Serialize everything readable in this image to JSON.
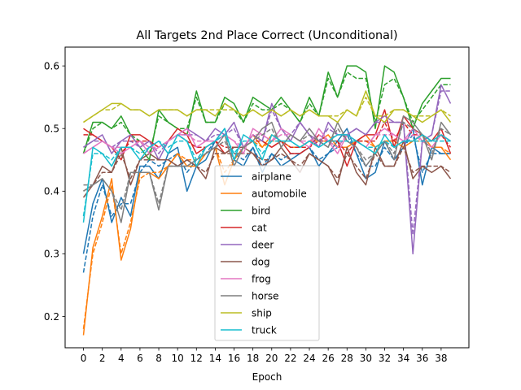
{
  "chart_data": {
    "type": "line",
    "title": "All Targets 2nd Place Correct (Unconditional)",
    "xlabel": "Epoch",
    "ylabel": "",
    "xlim": [
      -1.95,
      40.95
    ],
    "ylim": [
      0.15,
      0.63
    ],
    "xticks": [
      0,
      2,
      4,
      6,
      8,
      10,
      12,
      14,
      16,
      18,
      20,
      22,
      24,
      26,
      28,
      30,
      32,
      34,
      36,
      38
    ],
    "yticks": [
      0.2,
      0.3,
      0.4,
      0.5,
      0.6
    ],
    "legend_position": "lower-center",
    "line_styles": [
      "solid",
      "dashed"
    ],
    "x": [
      0,
      1,
      2,
      3,
      4,
      5,
      6,
      7,
      8,
      9,
      10,
      11,
      12,
      13,
      14,
      15,
      16,
      17,
      18,
      19,
      20,
      21,
      22,
      23,
      24,
      25,
      26,
      27,
      28,
      29,
      30,
      31,
      32,
      33,
      34,
      35,
      36,
      37,
      38,
      39
    ],
    "series": [
      {
        "name": "airplane",
        "color": "#1f77b4",
        "solid": [
          0.3,
          0.38,
          0.42,
          0.35,
          0.39,
          0.36,
          0.44,
          0.44,
          0.42,
          0.46,
          0.47,
          0.4,
          0.44,
          0.45,
          0.48,
          0.5,
          0.45,
          0.44,
          0.47,
          0.43,
          0.46,
          0.44,
          0.45,
          0.46,
          0.47,
          0.44,
          0.46,
          0.48,
          0.5,
          0.46,
          0.42,
          0.43,
          0.48,
          0.45,
          0.47,
          0.5,
          0.41,
          0.47,
          0.46,
          0.46
        ],
        "dashed": [
          0.27,
          0.36,
          0.41,
          0.36,
          0.38,
          0.38,
          0.43,
          0.45,
          0.44,
          0.45,
          0.46,
          0.43,
          0.45,
          0.46,
          0.48,
          0.49,
          0.46,
          0.45,
          0.47,
          0.44,
          0.46,
          0.45,
          0.46,
          0.46,
          0.47,
          0.45,
          0.46,
          0.47,
          0.49,
          0.46,
          0.44,
          0.44,
          0.47,
          0.45,
          0.47,
          0.49,
          0.43,
          0.46,
          0.46,
          0.46
        ]
      },
      {
        "name": "automobile",
        "color": "#ff7f0e",
        "solid": [
          0.17,
          0.31,
          0.36,
          0.42,
          0.29,
          0.34,
          0.43,
          0.43,
          0.42,
          0.44,
          0.46,
          0.44,
          0.44,
          0.46,
          0.47,
          0.41,
          0.45,
          0.47,
          0.49,
          0.47,
          0.49,
          0.48,
          0.47,
          0.47,
          0.48,
          0.48,
          0.49,
          0.47,
          0.47,
          0.48,
          0.49,
          0.47,
          0.48,
          0.48,
          0.47,
          0.48,
          0.49,
          0.47,
          0.47,
          0.45
        ],
        "dashed": [
          0.18,
          0.3,
          0.35,
          0.41,
          0.3,
          0.35,
          0.42,
          0.43,
          0.43,
          0.44,
          0.46,
          0.45,
          0.45,
          0.46,
          0.47,
          0.43,
          0.45,
          0.47,
          0.48,
          0.47,
          0.48,
          0.48,
          0.47,
          0.47,
          0.48,
          0.48,
          0.48,
          0.47,
          0.47,
          0.48,
          0.48,
          0.47,
          0.48,
          0.48,
          0.47,
          0.48,
          0.48,
          0.47,
          0.47,
          0.46
        ]
      },
      {
        "name": "bird",
        "color": "#2ca02c",
        "solid": [
          0.46,
          0.51,
          0.51,
          0.5,
          0.52,
          0.49,
          0.47,
          0.45,
          0.53,
          0.51,
          0.5,
          0.49,
          0.56,
          0.51,
          0.51,
          0.55,
          0.54,
          0.51,
          0.55,
          0.54,
          0.53,
          0.55,
          0.53,
          0.51,
          0.55,
          0.52,
          0.59,
          0.55,
          0.6,
          0.6,
          0.59,
          0.5,
          0.6,
          0.59,
          0.55,
          0.5,
          0.54,
          0.56,
          0.58,
          0.58
        ],
        "dashed": [
          0.46,
          0.5,
          0.51,
          0.5,
          0.51,
          0.49,
          0.48,
          0.46,
          0.52,
          0.51,
          0.5,
          0.5,
          0.55,
          0.51,
          0.51,
          0.54,
          0.53,
          0.51,
          0.54,
          0.53,
          0.53,
          0.54,
          0.53,
          0.51,
          0.54,
          0.52,
          0.58,
          0.55,
          0.59,
          0.58,
          0.58,
          0.51,
          0.57,
          0.58,
          0.55,
          0.51,
          0.53,
          0.55,
          0.57,
          0.57
        ]
      },
      {
        "name": "cat",
        "color": "#d62728",
        "solid": [
          0.5,
          0.49,
          0.48,
          0.47,
          0.45,
          0.49,
          0.49,
          0.48,
          0.47,
          0.48,
          0.5,
          0.49,
          0.46,
          0.47,
          0.48,
          0.46,
          0.47,
          0.47,
          0.49,
          0.48,
          0.47,
          0.48,
          0.46,
          0.46,
          0.47,
          0.49,
          0.48,
          0.48,
          0.44,
          0.48,
          0.49,
          0.49,
          0.53,
          0.47,
          0.52,
          0.5,
          0.49,
          0.48,
          0.5,
          0.46
        ],
        "dashed": [
          0.49,
          0.49,
          0.48,
          0.47,
          0.46,
          0.48,
          0.48,
          0.48,
          0.47,
          0.48,
          0.49,
          0.48,
          0.47,
          0.47,
          0.48,
          0.47,
          0.47,
          0.47,
          0.48,
          0.48,
          0.47,
          0.48,
          0.47,
          0.47,
          0.47,
          0.48,
          0.48,
          0.48,
          0.46,
          0.48,
          0.48,
          0.48,
          0.51,
          0.48,
          0.51,
          0.49,
          0.49,
          0.48,
          0.49,
          0.47
        ]
      },
      {
        "name": "deer",
        "color": "#9467bd",
        "solid": [
          0.47,
          0.48,
          0.49,
          0.46,
          0.48,
          0.49,
          0.47,
          0.48,
          0.45,
          0.48,
          0.49,
          0.5,
          0.49,
          0.48,
          0.5,
          0.49,
          0.51,
          0.47,
          0.49,
          0.48,
          0.54,
          0.5,
          0.48,
          0.51,
          0.49,
          0.47,
          0.51,
          0.49,
          0.49,
          0.5,
          0.49,
          0.51,
          0.52,
          0.51,
          0.51,
          0.3,
          0.48,
          0.49,
          0.57,
          0.54
        ],
        "dashed": [
          0.47,
          0.48,
          0.48,
          0.47,
          0.48,
          0.48,
          0.47,
          0.48,
          0.46,
          0.48,
          0.49,
          0.49,
          0.49,
          0.48,
          0.49,
          0.49,
          0.5,
          0.47,
          0.49,
          0.48,
          0.53,
          0.5,
          0.49,
          0.51,
          0.49,
          0.48,
          0.5,
          0.49,
          0.49,
          0.5,
          0.49,
          0.51,
          0.51,
          0.51,
          0.51,
          0.33,
          0.48,
          0.49,
          0.56,
          0.56
        ]
      },
      {
        "name": "dog",
        "color": "#8c564b",
        "solid": [
          0.39,
          0.41,
          0.44,
          0.43,
          0.47,
          0.41,
          0.45,
          0.46,
          0.45,
          0.45,
          0.44,
          0.45,
          0.44,
          0.42,
          0.47,
          0.46,
          0.47,
          0.47,
          0.46,
          0.44,
          0.45,
          0.47,
          0.45,
          0.43,
          0.46,
          0.45,
          0.44,
          0.41,
          0.47,
          0.43,
          0.41,
          0.47,
          0.44,
          0.44,
          0.48,
          0.42,
          0.44,
          0.43,
          0.44,
          0.42
        ],
        "dashed": [
          0.4,
          0.41,
          0.43,
          0.43,
          0.46,
          0.42,
          0.45,
          0.45,
          0.45,
          0.45,
          0.44,
          0.45,
          0.44,
          0.43,
          0.46,
          0.46,
          0.46,
          0.46,
          0.46,
          0.45,
          0.45,
          0.46,
          0.45,
          0.44,
          0.46,
          0.45,
          0.44,
          0.42,
          0.46,
          0.44,
          0.42,
          0.46,
          0.44,
          0.44,
          0.47,
          0.43,
          0.44,
          0.44,
          0.44,
          0.43
        ]
      },
      {
        "name": "frog",
        "color": "#e377c2",
        "solid": [
          0.46,
          0.47,
          0.48,
          0.47,
          0.46,
          0.47,
          0.48,
          0.46,
          0.47,
          0.48,
          0.49,
          0.5,
          0.47,
          0.48,
          0.48,
          0.49,
          0.48,
          0.46,
          0.5,
          0.49,
          0.48,
          0.5,
          0.49,
          0.48,
          0.47,
          0.5,
          0.48,
          0.46,
          0.49,
          0.48,
          0.47,
          0.49,
          0.5,
          0.49,
          0.48,
          0.5,
          0.48,
          0.47,
          0.49,
          0.48
        ],
        "dashed": [
          0.46,
          0.47,
          0.48,
          0.47,
          0.47,
          0.47,
          0.48,
          0.47,
          0.47,
          0.48,
          0.49,
          0.49,
          0.48,
          0.48,
          0.48,
          0.49,
          0.48,
          0.47,
          0.49,
          0.49,
          0.48,
          0.49,
          0.49,
          0.48,
          0.48,
          0.49,
          0.48,
          0.47,
          0.49,
          0.48,
          0.47,
          0.49,
          0.49,
          0.49,
          0.48,
          0.49,
          0.48,
          0.48,
          0.49,
          0.48
        ]
      },
      {
        "name": "horse",
        "color": "#7f7f7f",
        "solid": [
          0.4,
          0.41,
          0.42,
          0.4,
          0.35,
          0.43,
          0.43,
          0.43,
          0.37,
          0.44,
          0.44,
          0.44,
          0.45,
          0.46,
          0.47,
          0.49,
          0.44,
          0.47,
          0.48,
          0.5,
          0.51,
          0.47,
          0.49,
          0.48,
          0.5,
          0.48,
          0.47,
          0.51,
          0.48,
          0.47,
          0.44,
          0.46,
          0.48,
          0.45,
          0.52,
          0.51,
          0.49,
          0.45,
          0.51,
          0.49
        ],
        "dashed": [
          0.41,
          0.41,
          0.42,
          0.4,
          0.37,
          0.43,
          0.43,
          0.43,
          0.38,
          0.44,
          0.44,
          0.44,
          0.45,
          0.46,
          0.47,
          0.48,
          0.45,
          0.47,
          0.48,
          0.49,
          0.5,
          0.47,
          0.49,
          0.48,
          0.49,
          0.48,
          0.47,
          0.5,
          0.48,
          0.47,
          0.45,
          0.46,
          0.48,
          0.46,
          0.51,
          0.5,
          0.49,
          0.46,
          0.5,
          0.49
        ]
      },
      {
        "name": "ship",
        "color": "#bcbd22",
        "solid": [
          0.51,
          0.52,
          0.53,
          0.54,
          0.54,
          0.53,
          0.53,
          0.52,
          0.53,
          0.53,
          0.53,
          0.52,
          0.53,
          0.53,
          0.52,
          0.54,
          0.53,
          0.52,
          0.53,
          0.52,
          0.53,
          0.52,
          0.53,
          0.52,
          0.53,
          0.52,
          0.52,
          0.51,
          0.53,
          0.52,
          0.56,
          0.52,
          0.51,
          0.53,
          0.53,
          0.52,
          0.51,
          0.52,
          0.53,
          0.51
        ],
        "dashed": [
          0.51,
          0.52,
          0.53,
          0.53,
          0.54,
          0.53,
          0.53,
          0.52,
          0.53,
          0.53,
          0.53,
          0.52,
          0.53,
          0.53,
          0.53,
          0.53,
          0.53,
          0.52,
          0.53,
          0.52,
          0.53,
          0.52,
          0.53,
          0.52,
          0.53,
          0.52,
          0.52,
          0.52,
          0.53,
          0.52,
          0.55,
          0.52,
          0.52,
          0.53,
          0.53,
          0.52,
          0.52,
          0.52,
          0.53,
          0.52
        ]
      },
      {
        "name": "truck",
        "color": "#17becf",
        "solid": [
          0.35,
          0.47,
          0.46,
          0.44,
          0.47,
          0.47,
          0.45,
          0.47,
          0.48,
          0.46,
          0.49,
          0.48,
          0.44,
          0.47,
          0.48,
          0.5,
          0.45,
          0.49,
          0.48,
          0.45,
          0.49,
          0.48,
          0.48,
          0.47,
          0.48,
          0.47,
          0.48,
          0.49,
          0.49,
          0.48,
          0.47,
          0.46,
          0.49,
          0.47,
          0.48,
          0.48,
          0.49,
          0.48,
          0.49,
          0.48
        ],
        "dashed": [
          0.36,
          0.46,
          0.46,
          0.45,
          0.47,
          0.47,
          0.46,
          0.47,
          0.48,
          0.47,
          0.48,
          0.48,
          0.45,
          0.47,
          0.48,
          0.49,
          0.46,
          0.48,
          0.48,
          0.46,
          0.48,
          0.48,
          0.48,
          0.47,
          0.48,
          0.47,
          0.48,
          0.48,
          0.48,
          0.48,
          0.47,
          0.47,
          0.48,
          0.47,
          0.48,
          0.48,
          0.48,
          0.48,
          0.48,
          0.48
        ]
      }
    ]
  }
}
